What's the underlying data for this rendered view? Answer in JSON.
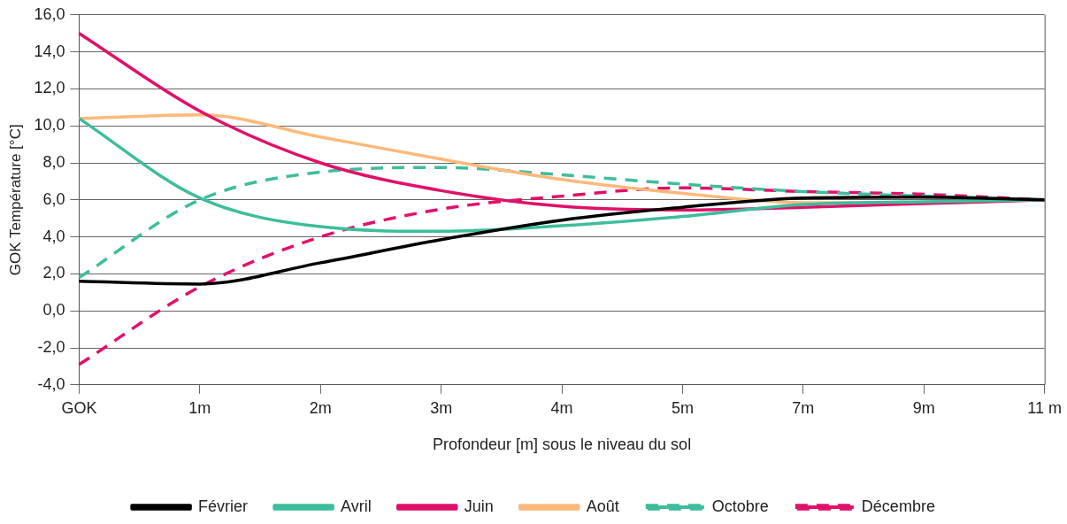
{
  "chart_data": {
    "type": "line",
    "xlabel": "Profondeur [m] sous le niveau du sol",
    "ylabel": "GOK Température [°C]",
    "categories": [
      "GOK",
      "1m",
      "2m",
      "3m",
      "4m",
      "5m",
      "7m",
      "9m",
      "11 m"
    ],
    "ylim": [
      -4,
      16
    ],
    "yticks": [
      {
        "value": -4,
        "label": "-4,0"
      },
      {
        "value": -2,
        "label": "-2,0"
      },
      {
        "value": 0,
        "label": "0,0"
      },
      {
        "value": 2,
        "label": "2,0"
      },
      {
        "value": 4,
        "label": "4,0"
      },
      {
        "value": 6,
        "label": "6,0"
      },
      {
        "value": 8,
        "label": "8,0"
      },
      {
        "value": 10,
        "label": "10,0"
      },
      {
        "value": 12,
        "label": "12,0"
      },
      {
        "value": 14,
        "label": "14,0"
      },
      {
        "value": 16,
        "label": "16,0"
      }
    ],
    "grid": "y",
    "legend": "bottom",
    "marker": "none",
    "series": [
      {
        "name": "Février",
        "color": "#000000",
        "line_style": "solid",
        "values": [
          1.6,
          1.45,
          2.6,
          3.85,
          4.9,
          5.6,
          6.1,
          6.15,
          6.0
        ]
      },
      {
        "name": "Avril",
        "color": "#3dbd9c",
        "line_style": "solid",
        "values": [
          10.4,
          6.1,
          4.55,
          4.3,
          4.6,
          5.1,
          5.75,
          5.9,
          6.0
        ]
      },
      {
        "name": "Juin",
        "color": "#e0116a",
        "line_style": "solid",
        "values": [
          15.0,
          10.8,
          8.0,
          6.5,
          5.65,
          5.45,
          5.6,
          5.8,
          6.0
        ]
      },
      {
        "name": "Août",
        "color": "#fdb97a",
        "line_style": "solid",
        "values": [
          10.4,
          10.6,
          9.4,
          8.2,
          7.1,
          6.35,
          5.85,
          5.85,
          6.0
        ]
      },
      {
        "name": "Octobre",
        "color": "#3dbd9c",
        "line_style": "dashed",
        "values": [
          1.8,
          6.0,
          7.5,
          7.75,
          7.35,
          6.85,
          6.45,
          6.2,
          6.0
        ]
      },
      {
        "name": "Décembre",
        "color": "#e0116a",
        "line_style": "dashed",
        "values": [
          -2.9,
          1.3,
          4.0,
          5.5,
          6.2,
          6.65,
          6.45,
          6.3,
          6.0
        ]
      }
    ]
  }
}
